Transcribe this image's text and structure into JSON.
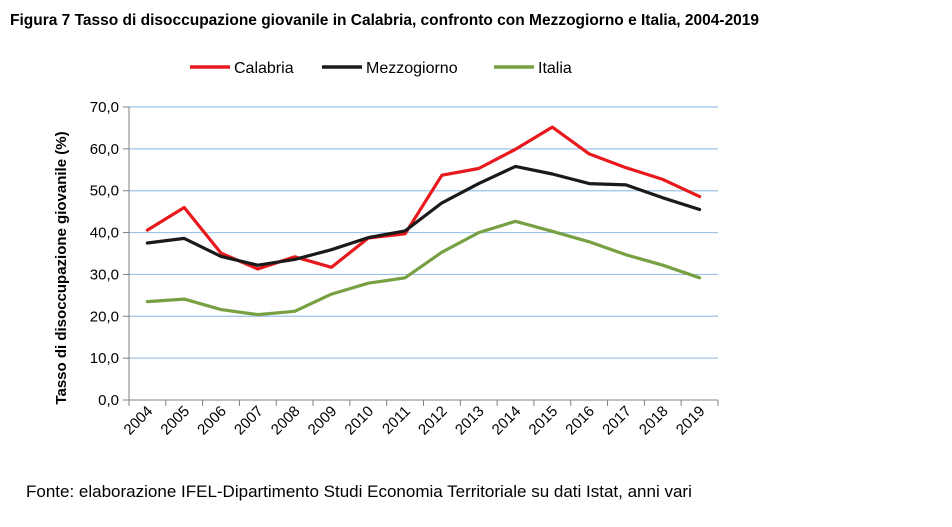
{
  "figure_title": "Figura 7 Tasso di disoccupazione giovanile in Calabria, confronto con Mezzogiorno e Italia, 2004-2019",
  "source_note": "Fonte: elaborazione IFEL-Dipartimento Studi Economia Territoriale su dati Istat, anni vari",
  "chart_data": {
    "type": "line",
    "ylabel": "Tasso di disoccupazione giovanile (%)",
    "xlabel": "",
    "ylim": [
      0,
      70
    ],
    "ytick_labels": [
      "0,0",
      "10,0",
      "20,0",
      "30,0",
      "40,0",
      "50,0",
      "60,0",
      "70,0"
    ],
    "grid": true,
    "legend_position": "top",
    "categories": [
      "2004",
      "2005",
      "2006",
      "2007",
      "2008",
      "2009",
      "2010",
      "2011",
      "2012",
      "2013",
      "2014",
      "2015",
      "2016",
      "2017",
      "2018",
      "2019"
    ],
    "series": [
      {
        "name": "Calabria",
        "color": "#e8191c",
        "values": [
          40.6,
          46.0,
          35.1,
          31.3,
          34.2,
          31.7,
          38.7,
          39.7,
          53.7,
          55.3,
          59.9,
          65.2,
          58.8,
          55.5,
          52.7,
          48.6
        ]
      },
      {
        "name": "Mezzogiorno",
        "color": "#1a1a1a",
        "values": [
          37.5,
          38.6,
          34.3,
          32.2,
          33.6,
          35.9,
          38.8,
          40.4,
          47.1,
          51.7,
          55.8,
          54.0,
          51.7,
          51.4,
          48.3,
          45.5
        ]
      },
      {
        "name": "Italia",
        "color": "#77a043",
        "values": [
          23.5,
          24.1,
          21.6,
          20.4,
          21.2,
          25.3,
          27.9,
          29.2,
          35.3,
          40.0,
          42.7,
          40.3,
          37.8,
          34.7,
          32.2,
          29.2
        ]
      }
    ]
  }
}
